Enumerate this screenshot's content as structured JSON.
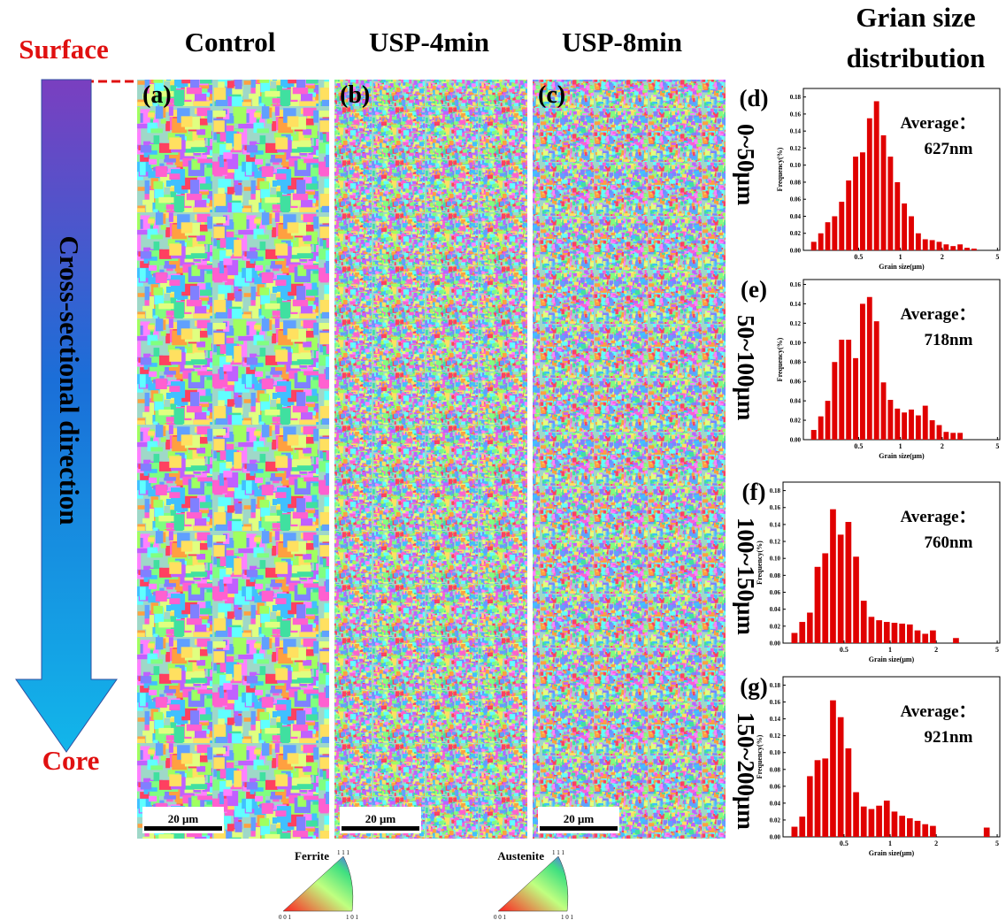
{
  "headings": {
    "control": "Control",
    "usp4": "USP-4min",
    "usp8": "USP-8min",
    "distribution": [
      "Grian size",
      "distribution"
    ]
  },
  "direction": {
    "surface": "Surface",
    "core": "Core",
    "label": "Cross-sectional direction"
  },
  "maps": [
    {
      "panel": "(a)",
      "scale_bar": "20 μm"
    },
    {
      "panel": "(b)",
      "scale_bar": "20 μm"
    },
    {
      "panel": "(c)",
      "scale_bar": "20 μm"
    }
  ],
  "legends": [
    {
      "phase": "Ferrite",
      "corners": [
        "1 1 1",
        "0 0 1",
        "1 0 1"
      ]
    },
    {
      "phase": "Austenite",
      "corners": [
        "1 1 1",
        "0 0 1",
        "1 0 1"
      ]
    }
  ],
  "chart_data": [
    {
      "type": "histogram",
      "panel": "(d)",
      "row_label": "0~50μm",
      "annotation": [
        "Average：",
        "627nm"
      ],
      "xlabel": "Grain size(μm)",
      "ylabel": "Frequency(%)",
      "color": "#e00000",
      "log_x": true,
      "bins": [
        0.2,
        0.224,
        0.252,
        0.283,
        0.317,
        0.356,
        0.4,
        0.449,
        0.504,
        0.566,
        0.635,
        0.713,
        0.8,
        0.898,
        1.008,
        1.131,
        1.27,
        1.425,
        1.6,
        1.796,
        2.016,
        2.263,
        2.54,
        2.851,
        3.2,
        3.592,
        4.032,
        4.525,
        5.08
      ],
      "values": [
        0,
        0.01,
        0.02,
        0.033,
        0.04,
        0.057,
        0.082,
        0.11,
        0.115,
        0.155,
        0.175,
        0.135,
        0.11,
        0.08,
        0.055,
        0.04,
        0.02,
        0.013,
        0.012,
        0.01,
        0.007,
        0.005,
        0.007,
        0.003,
        0.002,
        0,
        0,
        0
      ],
      "xlim": [
        0.2,
        5.2
      ],
      "xticks": [
        0.5,
        1,
        2,
        5
      ],
      "ylim": [
        0,
        0.19
      ],
      "yticks": [
        {
          "value": 0,
          "label": "0.00"
        },
        {
          "value": 0.02,
          "label": "0.02"
        },
        {
          "value": 0.04,
          "label": "0.04"
        },
        {
          "value": 0.06,
          "label": "0.06"
        },
        {
          "value": 0.08,
          "label": "0.08"
        },
        {
          "value": 0.1,
          "label": "0.10"
        },
        {
          "value": 0.12,
          "label": "0.12"
        },
        {
          "value": 0.14,
          "label": "0.14"
        },
        {
          "value": 0.16,
          "label": "0.16"
        },
        {
          "value": 0.18,
          "label": "0.18"
        }
      ]
    },
    {
      "type": "histogram",
      "panel": "(e)",
      "row_label": "50~100μm",
      "annotation": [
        "Average：",
        "718nm"
      ],
      "xlabel": "Grain size(μm)",
      "ylabel": "Frequency(%)",
      "color": "#e00000",
      "log_x": true,
      "bins": [
        0.2,
        0.224,
        0.252,
        0.283,
        0.317,
        0.356,
        0.4,
        0.449,
        0.504,
        0.566,
        0.635,
        0.713,
        0.8,
        0.898,
        1.008,
        1.131,
        1.27,
        1.425,
        1.6,
        1.796,
        2.016,
        2.263,
        2.54,
        2.851,
        3.2,
        3.592,
        4.032,
        4.525,
        5.08
      ],
      "values": [
        0,
        0.01,
        0.024,
        0.04,
        0.08,
        0.103,
        0.103,
        0.084,
        0.14,
        0.147,
        0.122,
        0.059,
        0.041,
        0.032,
        0.028,
        0.031,
        0.025,
        0.035,
        0.02,
        0.015,
        0.008,
        0.007,
        0.007,
        0,
        0,
        0,
        0,
        0
      ],
      "xlim": [
        0.2,
        5.2
      ],
      "xticks": [
        0.5,
        1,
        2,
        5
      ],
      "ylim": [
        0,
        0.165
      ],
      "yticks": [
        {
          "value": 0,
          "label": "0.00"
        },
        {
          "value": 0.02,
          "label": "0.02"
        },
        {
          "value": 0.04,
          "label": "0.04"
        },
        {
          "value": 0.06,
          "label": "0.06"
        },
        {
          "value": 0.08,
          "label": "0.08"
        },
        {
          "value": 0.1,
          "label": "0.10"
        },
        {
          "value": 0.12,
          "label": "0.12"
        },
        {
          "value": 0.14,
          "label": "0.14"
        },
        {
          "value": 0.16,
          "label": "0.16"
        }
      ]
    },
    {
      "type": "histogram",
      "panel": "(f)",
      "row_label": "100~150μm",
      "annotation": [
        "Average：",
        "760nm"
      ],
      "xlabel": "Grain size(μm)",
      "ylabel": "Frequency(%)",
      "color": "#e00000",
      "log_x": true,
      "bins": [
        0.2,
        0.224,
        0.252,
        0.283,
        0.317,
        0.356,
        0.4,
        0.449,
        0.504,
        0.566,
        0.635,
        0.713,
        0.8,
        0.898,
        1.008,
        1.131,
        1.27,
        1.425,
        1.6,
        1.796,
        2.016,
        2.263,
        2.54,
        2.851,
        3.2,
        3.592,
        4.032,
        4.525,
        5.08
      ],
      "values": [
        0,
        0.012,
        0.025,
        0.036,
        0.09,
        0.106,
        0.158,
        0.128,
        0.143,
        0.102,
        0.05,
        0.031,
        0.027,
        0.025,
        0.024,
        0.023,
        0.022,
        0.015,
        0.011,
        0.015,
        0,
        0,
        0.006,
        0,
        0,
        0,
        0,
        0
      ],
      "xlim": [
        0.2,
        5.2
      ],
      "xticks": [
        0.5,
        1,
        2,
        5
      ],
      "ylim": [
        0,
        0.19
      ],
      "yticks": [
        {
          "value": 0,
          "label": "0.00"
        },
        {
          "value": 0.02,
          "label": "0.02"
        },
        {
          "value": 0.04,
          "label": "0.04"
        },
        {
          "value": 0.06,
          "label": "0.06"
        },
        {
          "value": 0.08,
          "label": "0.08"
        },
        {
          "value": 0.1,
          "label": "0.10"
        },
        {
          "value": 0.12,
          "label": "0.12"
        },
        {
          "value": 0.14,
          "label": "0.14"
        },
        {
          "value": 0.16,
          "label": "0.16"
        },
        {
          "value": 0.18,
          "label": "0.18"
        }
      ]
    },
    {
      "type": "histogram",
      "panel": "(g)",
      "row_label": "150~200μm",
      "annotation": [
        "Average：",
        "921nm"
      ],
      "xlabel": "Grain size(μm)",
      "ylabel": "Frequency(%)",
      "color": "#e00000",
      "log_x": true,
      "bins": [
        0.2,
        0.224,
        0.252,
        0.283,
        0.317,
        0.356,
        0.4,
        0.449,
        0.504,
        0.566,
        0.635,
        0.713,
        0.8,
        0.898,
        1.008,
        1.131,
        1.27,
        1.425,
        1.6,
        1.796,
        2.016,
        2.263,
        2.54,
        2.851,
        3.2,
        3.592,
        4.032,
        4.525,
        5.08
      ],
      "values": [
        0,
        0.012,
        0.024,
        0.072,
        0.091,
        0.093,
        0.162,
        0.142,
        0.105,
        0.053,
        0.036,
        0.033,
        0.037,
        0.043,
        0.03,
        0.025,
        0.022,
        0.019,
        0.015,
        0.013,
        0,
        0,
        0,
        0,
        0,
        0,
        0.011,
        0
      ],
      "xlim": [
        0.2,
        5.2
      ],
      "xticks": [
        0.5,
        1,
        2,
        5
      ],
      "ylim": [
        0,
        0.19
      ],
      "yticks": [
        {
          "value": 0,
          "label": "0.00"
        },
        {
          "value": 0.02,
          "label": "0.02"
        },
        {
          "value": 0.04,
          "label": "0.04"
        },
        {
          "value": 0.06,
          "label": "0.06"
        },
        {
          "value": 0.08,
          "label": "0.08"
        },
        {
          "value": 0.1,
          "label": "0.10"
        },
        {
          "value": 0.12,
          "label": "0.12"
        },
        {
          "value": 0.14,
          "label": "0.14"
        },
        {
          "value": 0.16,
          "label": "0.16"
        },
        {
          "value": 0.18,
          "label": "0.18"
        }
      ]
    }
  ]
}
